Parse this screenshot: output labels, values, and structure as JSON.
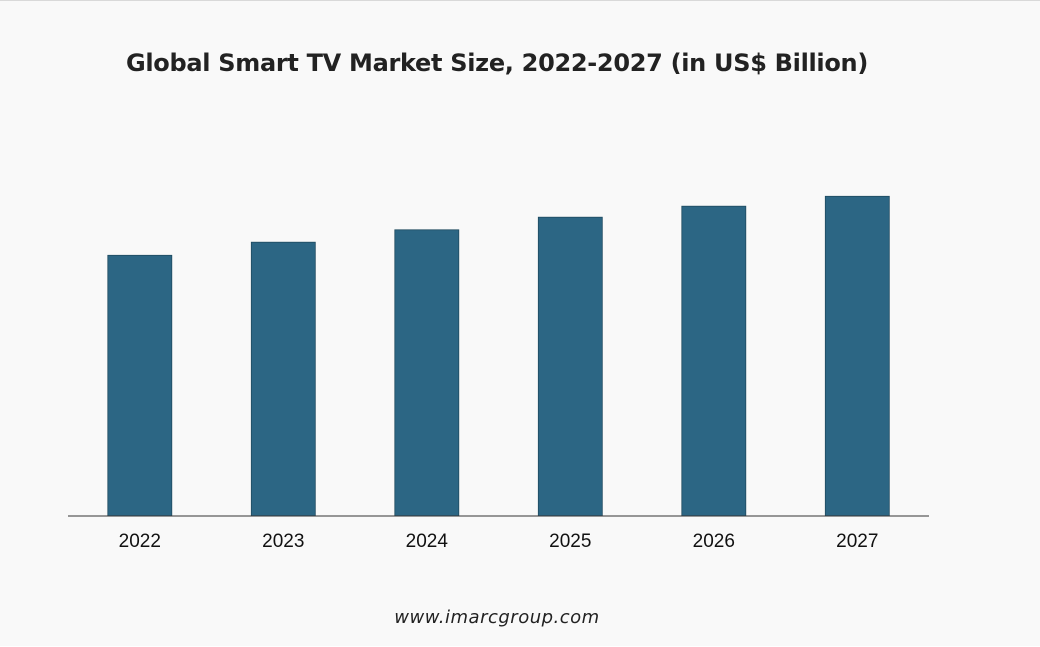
{
  "chart_data": {
    "type": "bar",
    "title": "Global Smart TV Market Size, 2022-2027 (in US$ Billion)",
    "categories": [
      "2022",
      "2023",
      "2024",
      "2025",
      "2026",
      "2027"
    ],
    "series": [
      {
        "values": [
          203.5,
          213.7,
          223.4,
          233.2,
          241.8,
          249.5
        ]
      }
    ],
    "xlabel": "",
    "ylabel": "",
    "ylim": [
      0,
      320
    ],
    "grid": false,
    "legend": "none",
    "bar_color": "#2c6684",
    "axis_color": "#333333"
  },
  "footer": {
    "source": "www.imarcgroup.com"
  }
}
